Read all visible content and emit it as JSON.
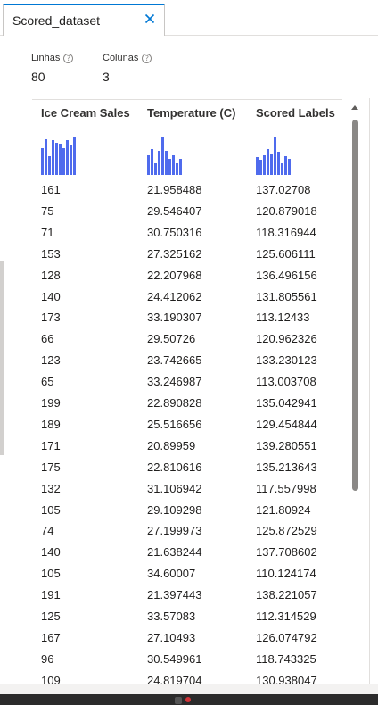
{
  "tab": {
    "title": "Scored_dataset"
  },
  "stats": [
    {
      "label": "Linhas",
      "value": "80"
    },
    {
      "label": "Colunas",
      "value": "3"
    }
  ],
  "grid": {
    "columns": [
      "Ice Cream Sales",
      "Temperature (C)",
      "Scored Labels"
    ],
    "histograms": [
      [
        0.68,
        0.9,
        0.48,
        0.88,
        0.82,
        0.8,
        0.68,
        0.88,
        0.78,
        0.95
      ],
      [
        0.5,
        0.65,
        0.3,
        0.62,
        0.95,
        0.62,
        0.42,
        0.5,
        0.3,
        0.4
      ],
      [
        0.45,
        0.38,
        0.5,
        0.65,
        0.52,
        0.95,
        0.6,
        0.3,
        0.48,
        0.4
      ]
    ],
    "rows": [
      [
        "161",
        "21.958488",
        "137.02708"
      ],
      [
        "75",
        "29.546407",
        "120.879018"
      ],
      [
        "71",
        "30.750316",
        "118.316944"
      ],
      [
        "153",
        "27.325162",
        "125.606111"
      ],
      [
        "128",
        "22.207968",
        "136.496156"
      ],
      [
        "140",
        "24.412062",
        "131.805561"
      ],
      [
        "173",
        "33.190307",
        "113.12433"
      ],
      [
        "66",
        "29.50726",
        "120.962326"
      ],
      [
        "123",
        "23.742665",
        "133.230123"
      ],
      [
        "65",
        "33.246987",
        "113.003708"
      ],
      [
        "199",
        "22.890828",
        "135.042941"
      ],
      [
        "189",
        "25.516656",
        "129.454844"
      ],
      [
        "171",
        "20.89959",
        "139.280551"
      ],
      [
        "175",
        "22.810616",
        "135.213643"
      ],
      [
        "132",
        "31.106942",
        "117.557998"
      ],
      [
        "105",
        "29.109298",
        "121.80924"
      ],
      [
        "74",
        "27.199973",
        "125.872529"
      ],
      [
        "140",
        "21.638244",
        "137.708602"
      ],
      [
        "105",
        "34.60007",
        "110.124174"
      ],
      [
        "191",
        "21.397443",
        "138.221057"
      ],
      [
        "125",
        "33.57083",
        "112.314529"
      ],
      [
        "167",
        "27.10493",
        "126.074792"
      ],
      [
        "96",
        "30.549961",
        "118.743325"
      ],
      [
        "109",
        "24.819704",
        "130.938047"
      ]
    ]
  },
  "colors": {
    "accent": "#0078d4",
    "histogram": "#4f6bed"
  }
}
